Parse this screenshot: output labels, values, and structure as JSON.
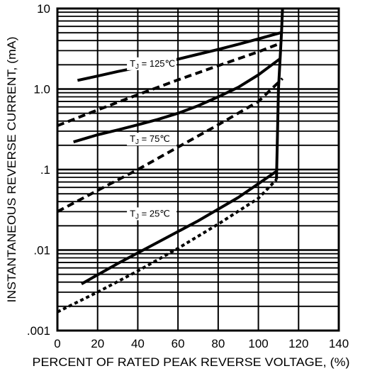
{
  "chart_data": {
    "type": "line",
    "title": "",
    "xlabel": "PERCENT OF RATED PEAK REVERSE VOLTAGE, (%)",
    "ylabel": "INSTANTANEOUS REVERSE CURRENT, (mA)",
    "x_scale": "linear",
    "y_scale": "log",
    "xlim": [
      0,
      140
    ],
    "ylim": [
      0.001,
      10
    ],
    "grid": true,
    "x_ticks": [
      0,
      20,
      40,
      60,
      80,
      100,
      120,
      140
    ],
    "x_tick_labels": [
      "0",
      "20",
      "40",
      "60",
      "80",
      "100",
      "120",
      "140"
    ],
    "y_ticks": [
      0.001,
      0.01,
      0.1,
      1,
      10
    ],
    "y_tick_labels": [
      ".001",
      ".01",
      ".1",
      "1.0",
      "10"
    ],
    "annotations": [
      {
        "text": "T",
        "sub": "J",
        "rest": " = 125℃",
        "x": 36,
        "y": 1.9
      },
      {
        "text": "T",
        "sub": "J",
        "rest": " = 75℃",
        "x": 36,
        "y": 0.22
      },
      {
        "text": "T",
        "sub": "J",
        "rest": " = 25℃",
        "x": 36,
        "y": 0.026
      }
    ],
    "series": [
      {
        "style": "solid",
        "x": [
          10,
          20,
          30,
          40,
          50,
          60,
          70,
          80,
          90,
          100,
          111
        ],
        "y": [
          1.28,
          1.45,
          1.65,
          1.85,
          2.1,
          2.35,
          2.7,
          3.1,
          3.6,
          4.2,
          5.0
        ]
      },
      {
        "style": "dashed",
        "x": [
          0,
          20,
          40,
          60,
          80,
          100,
          111
        ],
        "y": [
          0.35,
          0.55,
          0.85,
          1.3,
          1.95,
          2.9,
          3.7
        ]
      },
      {
        "style": "solid",
        "x": [
          8,
          20,
          30,
          40,
          50,
          60,
          70,
          80,
          90,
          100,
          111
        ],
        "y": [
          0.22,
          0.27,
          0.31,
          0.36,
          0.42,
          0.5,
          0.62,
          0.8,
          1.05,
          1.5,
          2.4
        ]
      },
      {
        "style": "dashed",
        "x": [
          0,
          20,
          40,
          60,
          80,
          100,
          112
        ],
        "y": [
          0.03,
          0.055,
          0.1,
          0.19,
          0.36,
          0.7,
          1.35
        ]
      },
      {
        "style": "solid",
        "x": [
          12,
          30,
          50,
          70,
          90,
          109
        ],
        "y": [
          0.0038,
          0.0068,
          0.0125,
          0.023,
          0.045,
          0.095
        ]
      },
      {
        "style": "dotted",
        "x": [
          0,
          20,
          40,
          60,
          80,
          100,
          109
        ],
        "y": [
          0.0017,
          0.003,
          0.0055,
          0.0105,
          0.021,
          0.044,
          0.075
        ]
      },
      {
        "style": "solid",
        "x": [
          109,
          110,
          111.5,
          112
        ],
        "y": [
          0.075,
          1.0,
          5.0,
          10
        ]
      }
    ]
  }
}
